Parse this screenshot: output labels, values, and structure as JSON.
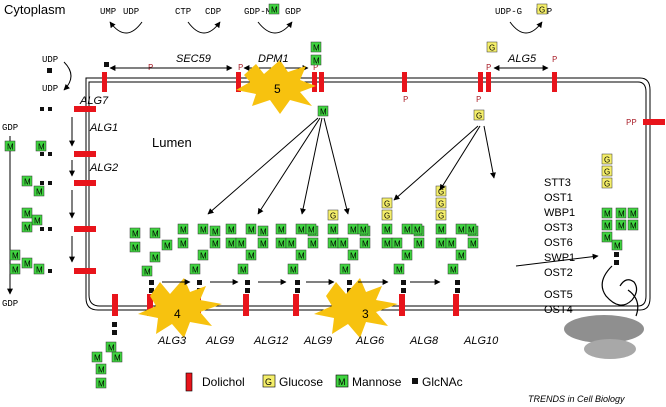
{
  "labels": {
    "cytoplasm": "Cytoplasm",
    "lumen": "Lumen",
    "credit": "TRENDS in Cell Biology"
  },
  "top_reactions": [
    {
      "left": "UMP",
      "right": "UDP"
    },
    {
      "left": "CTP",
      "right": "CDP"
    },
    {
      "left": "GDP-M",
      "right": "GDP"
    },
    {
      "left": "UDP-G",
      "right": "UDP"
    }
  ],
  "side_reactions": {
    "udp_top": "UDP",
    "udp_bottom": "UDP",
    "gdp_top": "GDP",
    "gdp_bottom": "GDP",
    "pp": "PP",
    "p": "P"
  },
  "enzymes_cyto": [
    "SEC59",
    "DPM1",
    "ALG5",
    "ALG7",
    "ALG1",
    "ALG2"
  ],
  "enzymes_lumen": [
    "ALG3",
    "ALG9",
    "ALG12",
    "ALG9",
    "ALG6",
    "ALG8",
    "ALG10"
  ],
  "ost_complex": [
    "STT3",
    "OST1",
    "WBP1",
    "OST3",
    "OST6",
    "SWP1",
    "OST2",
    "OST5",
    "OST4"
  ],
  "steps": [
    "5",
    "4",
    "3"
  ],
  "sugar_letters": {
    "mannose": "M",
    "glucose": "G"
  },
  "legend": [
    {
      "symbol": "dolichol",
      "label": "Dolichol",
      "color": "#e8141b"
    },
    {
      "symbol": "glucose",
      "label": "Glucose",
      "color": "#f5ef6a"
    },
    {
      "symbol": "mannose",
      "label": "Mannose",
      "color": "#3fd43f"
    },
    {
      "symbol": "glcnac",
      "label": "GlcNAc",
      "color": "#111111"
    }
  ],
  "colors": {
    "dolichol": "#e8141b",
    "glucose": "#f5ef6a",
    "mannose": "#3fd43f",
    "phosphate": "#b0303a",
    "burst": "#f7c20f",
    "ribosome": "#9a9a9a"
  }
}
